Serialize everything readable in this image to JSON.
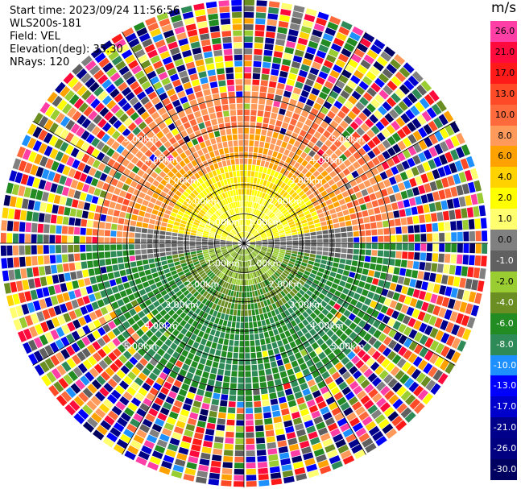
{
  "meta": {
    "start_time": "Start time: 2023/09/24 11:56:56",
    "instrument": "WLS200s-181",
    "field": "Field: VEL",
    "elevation": "Elevation(deg): 35.30",
    "nrays": "NRays: 120"
  },
  "colorbar": {
    "unit": "m/s",
    "levels": [
      {
        "label": "26.0",
        "color": "#ff3fa6"
      },
      {
        "label": "21.0",
        "color": "#ff0a3c"
      },
      {
        "label": "17.0",
        "color": "#ff1a1a"
      },
      {
        "label": "13.0",
        "color": "#ff4a28"
      },
      {
        "label": "10.0",
        "color": "#ff6a3c"
      },
      {
        "label": "8.0",
        "color": "#ff9a5a"
      },
      {
        "label": "6.0",
        "color": "#ffa200"
      },
      {
        "label": "4.0",
        "color": "#ffd200"
      },
      {
        "label": "2.0",
        "color": "#ffff00"
      },
      {
        "label": "1.0",
        "color": "#ffff70"
      },
      {
        "label": "0.0",
        "color": "#808080"
      },
      {
        "label": "-1.0",
        "color": "#606060"
      },
      {
        "label": "-2.0",
        "color": "#9acd32"
      },
      {
        "label": "-4.0",
        "color": "#6b8e23"
      },
      {
        "label": "-6.0",
        "color": "#228b22"
      },
      {
        "label": "-8.0",
        "color": "#2e8b57"
      },
      {
        "label": "-10.0",
        "color": "#1e90ff"
      },
      {
        "label": "-13.0",
        "color": "#0000ff"
      },
      {
        "label": "-17.0",
        "color": "#0000cd"
      },
      {
        "label": "-21.0",
        "color": "#00008b"
      },
      {
        "label": "-26.0",
        "color": "#000080"
      },
      {
        "label": "-30.0",
        "color": "#000060"
      }
    ]
  },
  "chart_data": {
    "type": "heatmap",
    "title": "",
    "unit": "m/s",
    "range_rings_km": [
      1,
      2,
      3,
      4,
      5
    ],
    "range_ring_labels": [
      "1.00km",
      "2.00km",
      "3.00km",
      "4.00km",
      "5.00km"
    ],
    "azimuth_spokes_deg": [
      0,
      30,
      60,
      90,
      120,
      150,
      180,
      210,
      240,
      270,
      300,
      330
    ],
    "nrays": 120,
    "max_range_km": 5.0,
    "velocity_pattern": [
      {
        "region": "north sector, 0.4-2.6 km",
        "values_ms": [
          1.0,
          8.0
        ]
      },
      {
        "region": "south sector, 0.4-3.5 km",
        "values_ms": [
          -8.0,
          -2.0
        ]
      },
      {
        "region": "east-west band near 0 km",
        "values_ms": [
          -1.0,
          0.0
        ]
      },
      {
        "region": "beyond ~3 km",
        "values_ms": "noise (random colours)"
      }
    ]
  }
}
